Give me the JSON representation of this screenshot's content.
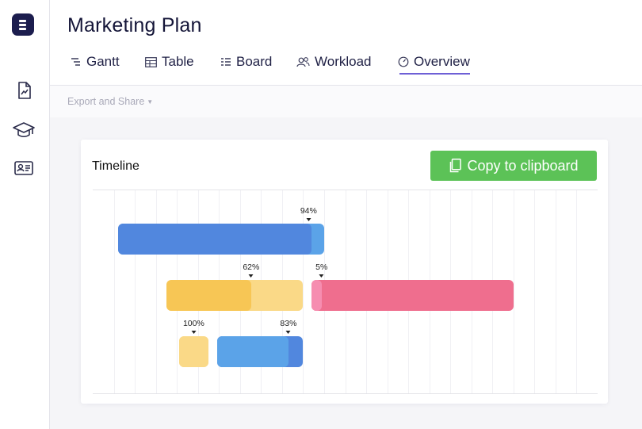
{
  "page": {
    "title": "Marketing Plan"
  },
  "tabs": [
    {
      "label": "Gantt",
      "icon": "gantt-icon"
    },
    {
      "label": "Table",
      "icon": "table-icon"
    },
    {
      "label": "Board",
      "icon": "board-icon"
    },
    {
      "label": "Workload",
      "icon": "workload-icon"
    },
    {
      "label": "Overview",
      "icon": "overview-icon",
      "active": true
    }
  ],
  "sidebar": {
    "logo": "app-logo",
    "items": [
      {
        "icon": "document-chart-icon"
      },
      {
        "icon": "graduation-cap-icon"
      },
      {
        "icon": "contact-card-icon"
      }
    ]
  },
  "toolbar": {
    "export_label": "Export and Share"
  },
  "timeline": {
    "title": "Timeline",
    "copy_label": "Copy to clipboard",
    "copy_button_color": "#5cc257",
    "accent_color": "#6e5fd6"
  },
  "chart_data": {
    "type": "gantt",
    "title": "Timeline",
    "units": "timeline columns (24 gridline columns visible)",
    "x_range": [
      0,
      24
    ],
    "grid": true,
    "bars": [
      {
        "row": 0,
        "start": 1.2,
        "end": 11.0,
        "progress": 94,
        "label": "94%",
        "color": "#5ba3e8",
        "progress_color": "#5187de"
      },
      {
        "row": 1,
        "start": 3.5,
        "end": 10.0,
        "progress": 62,
        "label": "62%",
        "color": "#fad987",
        "progress_color": "#f7c655"
      },
      {
        "row": 1,
        "start": 10.4,
        "end": 20.0,
        "progress": 5,
        "label": "5%",
        "color": "#ef6e8e",
        "progress_color": "#f68db0"
      },
      {
        "row": 2,
        "start": 4.1,
        "end": 5.5,
        "progress": 100,
        "label": "100%",
        "color": "#fad987",
        "progress_color": "#fad987"
      },
      {
        "row": 2,
        "start": 5.9,
        "end": 10.0,
        "progress": 83,
        "label": "83%",
        "color": "#5187de",
        "progress_color": "#5ba3e8"
      }
    ]
  }
}
